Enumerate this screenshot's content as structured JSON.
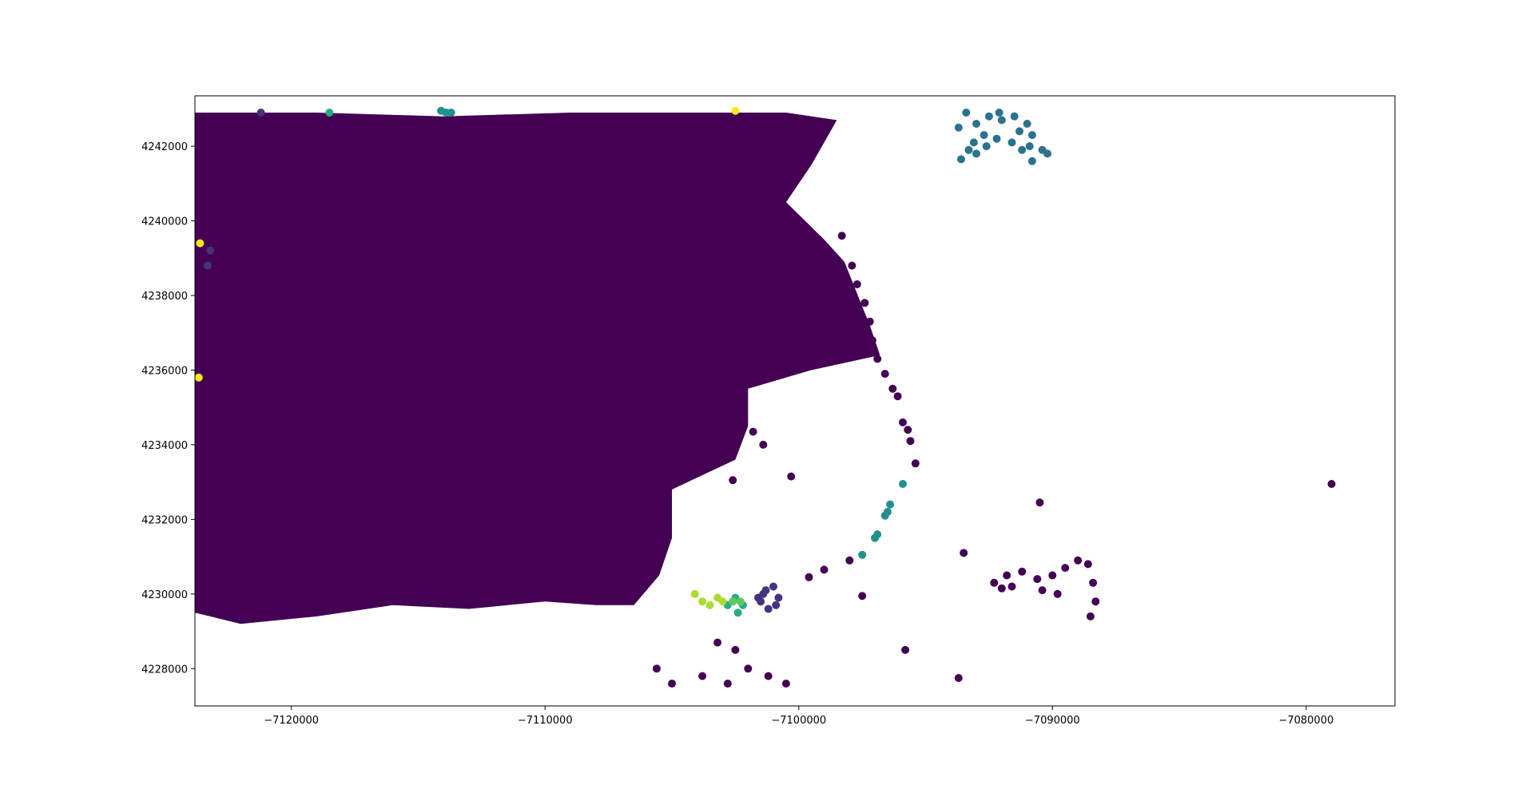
{
  "chart_data": {
    "type": "scatter",
    "title": "",
    "xlabel": "",
    "ylabel": "",
    "xlim": [
      -7123800,
      -7076500
    ],
    "ylim": [
      4227000,
      4243350
    ],
    "grid": false,
    "legend": "none",
    "x_ticks": [
      -7120000,
      -7110000,
      -7100000,
      -7090000,
      -7080000
    ],
    "x_tick_labels": [
      "−7120000",
      "−7110000",
      "−7100000",
      "−7090000",
      "−7080000"
    ],
    "y_ticks": [
      4228000,
      4230000,
      4232000,
      4234000,
      4236000,
      4238000,
      4240000,
      4242000
    ],
    "y_tick_labels": [
      "4228000",
      "4230000",
      "4232000",
      "4234000",
      "4236000",
      "4238000",
      "4240000",
      "4242000"
    ],
    "dense_region": {
      "color": "#440154",
      "description_points": [
        [
          -7123500,
          4242900
        ],
        [
          -7119000,
          4242900
        ],
        [
          -7114000,
          4242800
        ],
        [
          -7109000,
          4242900
        ],
        [
          -7104500,
          4242900
        ],
        [
          -7100500,
          4242900
        ],
        [
          -7098500,
          4242700
        ],
        [
          -7099500,
          4241500
        ],
        [
          -7100500,
          4240500
        ],
        [
          -7099000,
          4239500
        ],
        [
          -7098200,
          4238900
        ],
        [
          -7097200,
          4237200
        ],
        [
          -7096800,
          4236400
        ],
        [
          -7099500,
          4236000
        ],
        [
          -7102000,
          4235500
        ],
        [
          -7102000,
          4234500
        ],
        [
          -7102500,
          4233600
        ],
        [
          -7105000,
          4232800
        ],
        [
          -7105000,
          4231500
        ],
        [
          -7105500,
          4230500
        ],
        [
          -7106500,
          4229700
        ],
        [
          -7108000,
          4229700
        ],
        [
          -7110000,
          4229800
        ],
        [
          -7113000,
          4229600
        ],
        [
          -7116000,
          4229700
        ],
        [
          -7119000,
          4229400
        ],
        [
          -7122000,
          4229200
        ],
        [
          -7123800,
          4229500
        ],
        [
          -7123800,
          4242900
        ]
      ]
    },
    "series": [
      {
        "color": "#440154",
        "points": [
          [
            -7079000,
            4232950
          ],
          [
            -7090500,
            4232450
          ],
          [
            -7093500,
            4231100
          ],
          [
            -7095800,
            4228500
          ],
          [
            -7093700,
            4227750
          ],
          [
            -7097500,
            4229950
          ],
          [
            -7098000,
            4230900
          ],
          [
            -7099000,
            4230650
          ],
          [
            -7099600,
            4230450
          ],
          [
            -7100300,
            4233150
          ],
          [
            -7101400,
            4234000
          ],
          [
            -7101800,
            4234350
          ],
          [
            -7102600,
            4233050
          ],
          [
            -7095400,
            4233500
          ],
          [
            -7095600,
            4234100
          ],
          [
            -7095700,
            4234400
          ],
          [
            -7095900,
            4234600
          ],
          [
            -7096100,
            4235300
          ],
          [
            -7096300,
            4235500
          ],
          [
            -7096600,
            4235900
          ],
          [
            -7096900,
            4236300
          ],
          [
            -7097100,
            4236800
          ],
          [
            -7097200,
            4237300
          ],
          [
            -7097400,
            4237800
          ],
          [
            -7097700,
            4238300
          ],
          [
            -7097900,
            4238800
          ],
          [
            -7098300,
            4239600
          ],
          [
            -7092300,
            4230300
          ],
          [
            -7091800,
            4230500
          ],
          [
            -7091200,
            4230600
          ],
          [
            -7090600,
            4230400
          ],
          [
            -7090000,
            4230500
          ],
          [
            -7089500,
            4230700
          ],
          [
            -7089000,
            4230900
          ],
          [
            -7088600,
            4230800
          ],
          [
            -7088400,
            4230300
          ],
          [
            -7088300,
            4229800
          ],
          [
            -7088500,
            4229400
          ],
          [
            -7090400,
            4230100
          ],
          [
            -7091600,
            4230200
          ],
          [
            -7092000,
            4230150
          ],
          [
            -7089800,
            4230000
          ],
          [
            -7105600,
            4228000
          ],
          [
            -7105000,
            4227600
          ],
          [
            -7103800,
            4227800
          ],
          [
            -7102800,
            4227600
          ],
          [
            -7102000,
            4228000
          ],
          [
            -7101200,
            4227800
          ],
          [
            -7100500,
            4227600
          ],
          [
            -7102500,
            4228500
          ],
          [
            -7103200,
            4228700
          ]
        ]
      },
      {
        "color": "#46327e",
        "points": [
          [
            -7101500,
            4229800
          ],
          [
            -7101300,
            4230100
          ],
          [
            -7101000,
            4230200
          ],
          [
            -7100800,
            4229900
          ],
          [
            -7101200,
            4229600
          ],
          [
            -7101600,
            4229900
          ],
          [
            -7100900,
            4229700
          ],
          [
            -7101400,
            4230000
          ],
          [
            -7123200,
            4239200
          ],
          [
            -7123300,
            4238800
          ],
          [
            -7121200,
            4242900
          ]
        ]
      },
      {
        "color": "#2c728e",
        "points": [
          [
            -7093400,
            4242900
          ],
          [
            -7093000,
            4242600
          ],
          [
            -7092500,
            4242800
          ],
          [
            -7092000,
            4242700
          ],
          [
            -7091500,
            4242800
          ],
          [
            -7091000,
            4242600
          ],
          [
            -7090800,
            4242300
          ],
          [
            -7090900,
            4242000
          ],
          [
            -7091200,
            4241900
          ],
          [
            -7091600,
            4242100
          ],
          [
            -7092200,
            4242200
          ],
          [
            -7092700,
            4242300
          ],
          [
            -7093100,
            4242100
          ],
          [
            -7093300,
            4241900
          ],
          [
            -7093000,
            4241800
          ],
          [
            -7092600,
            4242000
          ],
          [
            -7090400,
            4241900
          ],
          [
            -7090200,
            4241800
          ],
          [
            -7090800,
            4241600
          ],
          [
            -7093600,
            4241650
          ],
          [
            -7093700,
            4242500
          ],
          [
            -7092100,
            4242900
          ],
          [
            -7091300,
            4242400
          ]
        ]
      },
      {
        "color": "#21918c",
        "points": [
          [
            -7095900,
            4232950
          ],
          [
            -7096400,
            4232400
          ],
          [
            -7096500,
            4232200
          ],
          [
            -7096600,
            4232100
          ],
          [
            -7096900,
            4231600
          ],
          [
            -7097000,
            4231500
          ],
          [
            -7097500,
            4231050
          ],
          [
            -7113900,
            4242900
          ],
          [
            -7113700,
            4242900
          ],
          [
            -7114100,
            4242950
          ]
        ]
      },
      {
        "color": "#27ad81",
        "points": [
          [
            -7102500,
            4229900
          ],
          [
            -7102200,
            4229700
          ],
          [
            -7102800,
            4229700
          ],
          [
            -7102400,
            4229500
          ],
          [
            -7118500,
            4242900
          ]
        ]
      },
      {
        "color": "#5ec962",
        "points": [
          [
            -7102300,
            4229800
          ],
          [
            -7102600,
            4229800
          ]
        ]
      },
      {
        "color": "#aadc32",
        "points": [
          [
            -7104100,
            4230000
          ],
          [
            -7103800,
            4229800
          ],
          [
            -7103500,
            4229700
          ],
          [
            -7103200,
            4229900
          ],
          [
            -7103000,
            4229800
          ]
        ]
      },
      {
        "color": "#fde725",
        "points": [
          [
            -7123600,
            4239400
          ],
          [
            -7123650,
            4235800
          ],
          [
            -7102500,
            4242950
          ]
        ]
      }
    ]
  }
}
